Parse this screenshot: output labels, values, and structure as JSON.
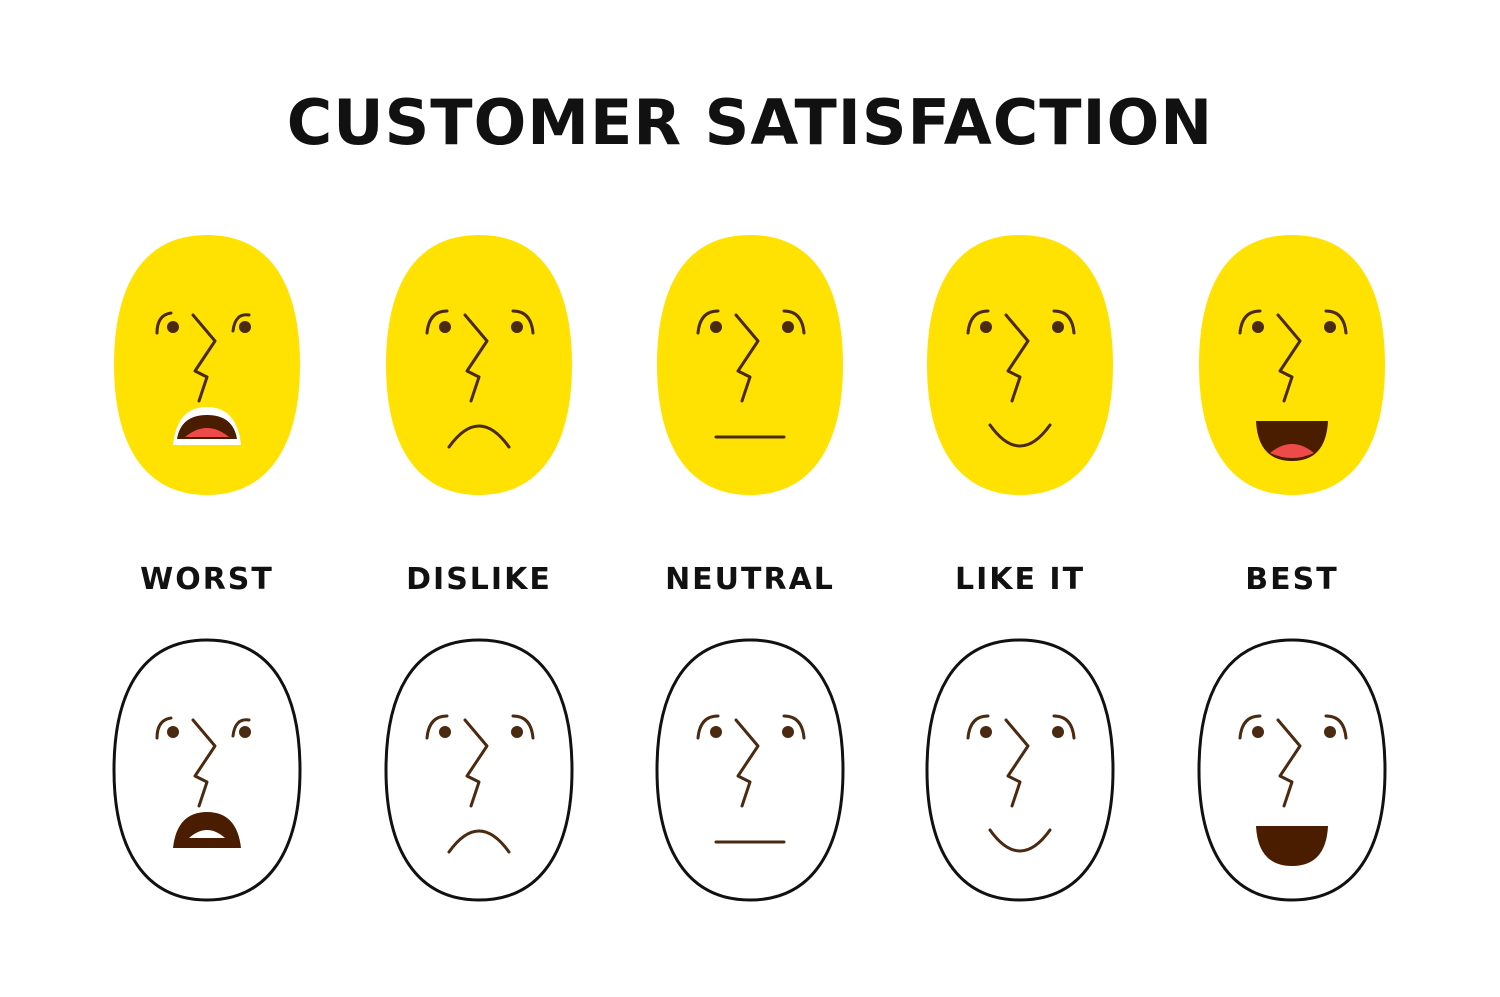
{
  "title": "CUSTOMER SATISFACTION",
  "colors": {
    "face_fill": "#FFE202",
    "feature": "#4a2a10",
    "mouth_red": "#ef4a4a",
    "outline": "#111111",
    "mouth_dark": "#4a1c00"
  },
  "ratings": [
    {
      "label": "WORST",
      "mood": "worst",
      "yellow_icon": "worst-face-icon",
      "outline_icon": "worst-outline-face-icon"
    },
    {
      "label": "DISLIKE",
      "mood": "dislike",
      "yellow_icon": "dislike-face-icon",
      "outline_icon": "dislike-outline-face-icon"
    },
    {
      "label": "NEUTRAL",
      "mood": "neutral",
      "yellow_icon": "neutral-face-icon",
      "outline_icon": "neutral-outline-face-icon"
    },
    {
      "label": "LIKE IT",
      "mood": "like",
      "yellow_icon": "like-face-icon",
      "outline_icon": "like-outline-face-icon"
    },
    {
      "label": "BEST",
      "mood": "best",
      "yellow_icon": "best-face-icon",
      "outline_icon": "best-outline-face-icon"
    }
  ]
}
